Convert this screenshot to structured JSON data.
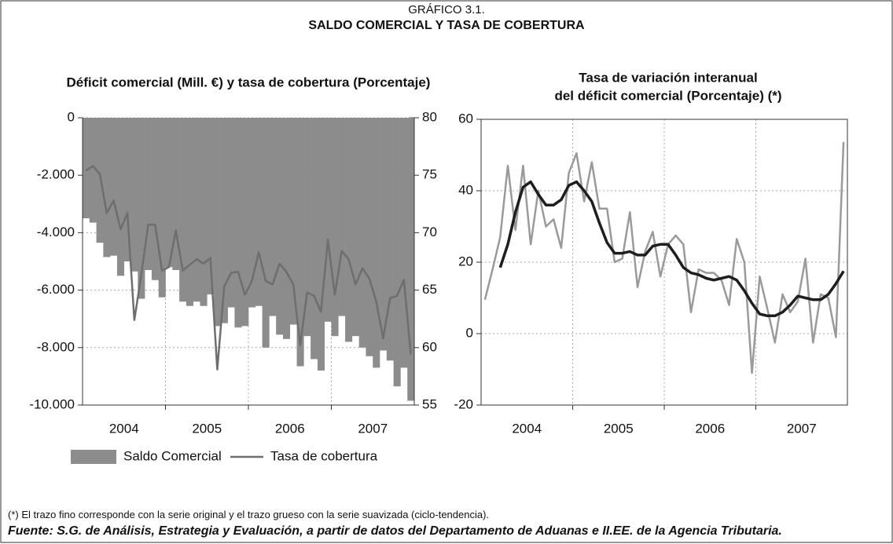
{
  "header": {
    "label": "GRÁFICO 3.1.",
    "title": "SALDO COMERCIAL Y TASA DE COBERTURA"
  },
  "chart_data": [
    {
      "type": "bar",
      "title": "Déficit comercial (Mill. €) y tasa de cobertura (Porcentaje)",
      "xtick_labels": [
        "2004",
        "2005",
        "2006",
        "2007"
      ],
      "ylim": [
        -10000,
        0
      ],
      "yticks": [
        {
          "value": -10000,
          "label": "-10.000"
        },
        {
          "value": -8000,
          "label": "-8.000"
        },
        {
          "value": -6000,
          "label": "-6.000"
        },
        {
          "value": -4000,
          "label": "-4.000"
        },
        {
          "value": -2000,
          "label": "-2.000"
        },
        0
      ],
      "y2lim": [
        55,
        80
      ],
      "y2ticks": [
        55,
        60,
        65,
        70,
        75,
        80
      ],
      "grid": true,
      "legend": "bottom",
      "series": [
        {
          "name": "Saldo Comercial",
          "type": "bar",
          "color": "#8c8c8c",
          "values": [
            -3500,
            -3650,
            -4350,
            -4850,
            -4800,
            -5500,
            -5000,
            -5350,
            -6300,
            -5300,
            -5650,
            -6250,
            -5200,
            -5300,
            -6400,
            -6550,
            -6400,
            -6550,
            -6150,
            -7250,
            -7150,
            -6600,
            -7300,
            -7250,
            -6600,
            -6550,
            -8000,
            -6900,
            -7550,
            -7700,
            -7200,
            -8650,
            -7600,
            -8400,
            -8800,
            -7100,
            -7600,
            -6900,
            -7800,
            -7600,
            -8000,
            -8300,
            -8700,
            -8100,
            -8450,
            -9350,
            -8700,
            -9850
          ]
        },
        {
          "name": "Tasa de cobertura",
          "type": "line",
          "axis": "y2",
          "color": "#6e6e6e",
          "values": [
            75.4,
            75.8,
            75.1,
            71.7,
            72.8,
            70.3,
            71.7,
            62.4,
            66.3,
            70.7,
            70.7,
            66.7,
            67,
            70.2,
            66.7,
            67.2,
            67.7,
            67.3,
            67.8,
            58.1,
            65.3,
            66.5,
            66.6,
            64.6,
            65.8,
            68.3,
            65.8,
            65.5,
            67.3,
            66.6,
            65.5,
            60.2,
            64.8,
            64.5,
            63.1,
            69.4,
            64.6,
            68.4,
            67.7,
            65.5,
            66.9,
            66,
            64,
            60.8,
            64.3,
            64.5,
            65.9,
            59.4
          ]
        }
      ]
    },
    {
      "type": "line",
      "title_lines": [
        "Tasa de variación interanual",
        "del déficit comercial (Porcentaje) (*)"
      ],
      "xtick_labels": [
        "2004",
        "2005",
        "2006",
        "2007"
      ],
      "ylim": [
        -20,
        60
      ],
      "yticks": [
        -20,
        0,
        20,
        40,
        60
      ],
      "grid": true,
      "series": [
        {
          "color": "#9a9a9a",
          "width": 2.5,
          "values": [
            9.5,
            18,
            27,
            47,
            29,
            47,
            25,
            40,
            30,
            32,
            24,
            45,
            50.5,
            37,
            48,
            35,
            35,
            20,
            21,
            34,
            13,
            23,
            28.5,
            16,
            25,
            27.5,
            25,
            6,
            18,
            17,
            17,
            15,
            8,
            26.5,
            20,
            -11,
            16,
            7,
            -2.5,
            11,
            6,
            9,
            21,
            -2.5,
            11,
            10,
            -1,
            53.7
          ]
        },
        {
          "color": "#1e1e1e",
          "width": 3.5,
          "values": [
            null,
            null,
            18.5,
            25,
            34,
            41,
            42.5,
            39,
            36,
            36,
            37.5,
            41.5,
            42.5,
            40,
            37,
            31,
            25.5,
            22.5,
            22.5,
            23,
            22,
            22,
            24.5,
            25,
            25,
            22,
            18.5,
            17,
            16.5,
            15.5,
            15,
            15.5,
            16,
            15,
            12,
            8.5,
            5.5,
            5,
            5,
            6,
            8,
            10.5,
            10,
            9.5,
            9.5,
            11,
            14,
            17.5
          ]
        }
      ]
    }
  ],
  "footnote": "(*)  El trazo fino corresponde con la serie original y el trazo grueso con la serie suavizada (ciclo-tendencia).",
  "source": "Fuente: S.G. de Análisis, Estrategia y Evaluación, a partir de datos del Departamento de Aduanas e II.EE. de la Agencia Tributaria."
}
